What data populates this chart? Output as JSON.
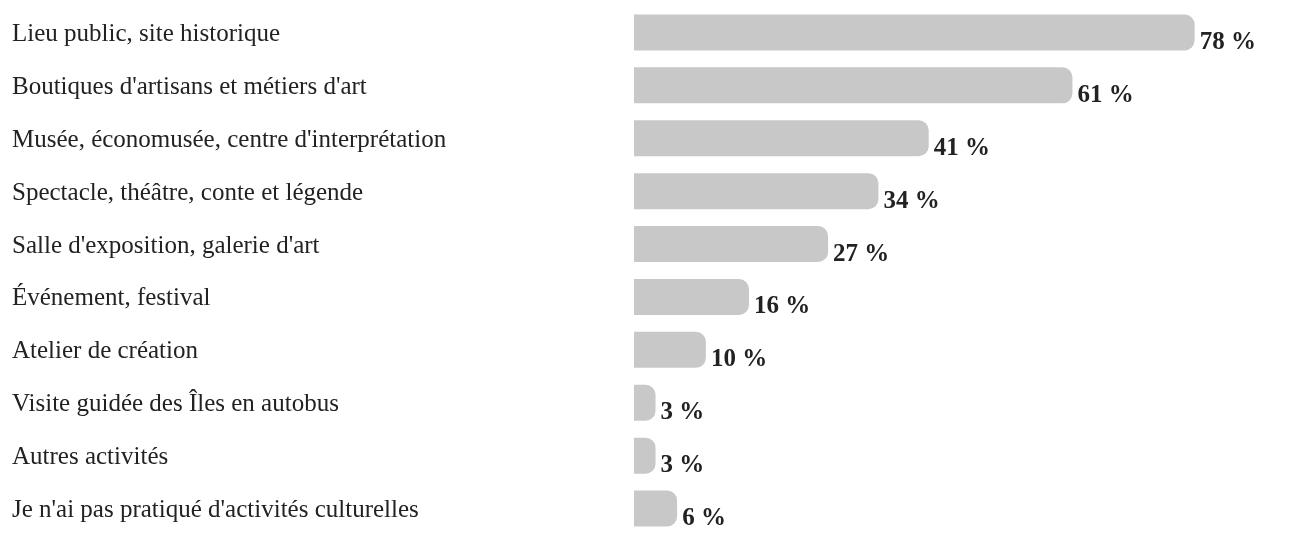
{
  "chart_data": {
    "type": "bar",
    "orientation": "horizontal",
    "categories": [
      "Lieu public, site historique",
      "Boutiques d'artisans et métiers d'art",
      "Musée, économusée, centre d'interprétation",
      "Spectacle, théâtre, conte et légende",
      "Salle d'exposition, galerie d'art",
      "Événement, festival",
      "Atelier de création",
      "Visite guidée des Îles en autobus",
      "Autres activités",
      "Je n'ai pas pratiqué d'activités culturelles"
    ],
    "values": [
      78,
      61,
      41,
      34,
      27,
      16,
      10,
      3,
      3,
      6
    ],
    "value_labels": [
      "78 %",
      "61 %",
      "41 %",
      "34 %",
      "27 %",
      "16 %",
      "10 %",
      "3 %",
      "3 %",
      "6 %"
    ],
    "color": "#c8c8c8"
  }
}
